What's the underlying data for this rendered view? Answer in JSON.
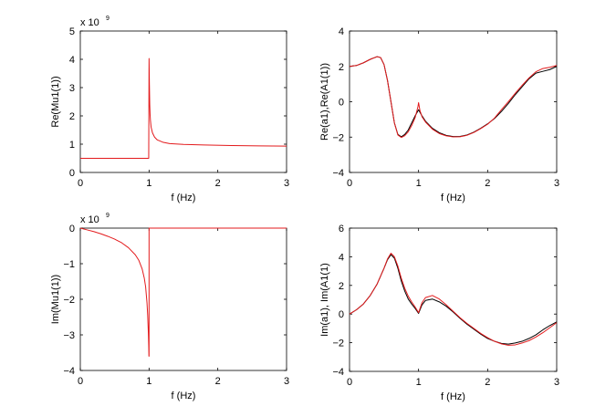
{
  "chart_data": [
    {
      "type": "line",
      "id": "p1",
      "xlabel": "f (Hz)",
      "ylabel": "Re(Mu1(1))",
      "xlim": [
        0,
        3
      ],
      "ylim": [
        0,
        5
      ],
      "xticks": [
        "0",
        "1",
        "2",
        "3"
      ],
      "yticks": [
        "0",
        "1",
        "2",
        "3",
        "4",
        "5"
      ],
      "multiplier_base": "x 10",
      "multiplier_exp": "9",
      "series": [
        {
          "name": "red",
          "color": "#e31a1c",
          "x": [
            0,
            0.99,
            0.995,
            1.0,
            1.005,
            1.01,
            1.015,
            1.02,
            1.03,
            1.05,
            1.08,
            1.12,
            1.2,
            1.3,
            1.5,
            1.8,
            2.2,
            2.6,
            3.0
          ],
          "y": [
            0.5,
            0.5,
            0.5,
            4.03,
            3.1,
            2.4,
            2.05,
            1.85,
            1.6,
            1.4,
            1.25,
            1.15,
            1.07,
            1.02,
            0.99,
            0.97,
            0.95,
            0.94,
            0.93
          ]
        }
      ]
    },
    {
      "type": "line",
      "id": "p2",
      "xlabel": "f (Hz)",
      "ylabel": "Re(a1),Re(A1(1))",
      "xlim": [
        0,
        3
      ],
      "ylim": [
        -4,
        4
      ],
      "xticks": [
        "0",
        "1",
        "2",
        "3"
      ],
      "yticks": [
        "−4",
        "−2",
        "0",
        "2",
        "4"
      ],
      "series": [
        {
          "name": "black",
          "color": "#000000",
          "x": [
            0,
            0.1,
            0.2,
            0.3,
            0.4,
            0.45,
            0.5,
            0.55,
            0.6,
            0.65,
            0.7,
            0.75,
            0.8,
            0.85,
            0.9,
            0.95,
            1.0,
            1.02,
            1.05,
            1.1,
            1.2,
            1.3,
            1.4,
            1.5,
            1.6,
            1.7,
            1.8,
            1.9,
            2.0,
            2.1,
            2.2,
            2.3,
            2.4,
            2.5,
            2.6,
            2.7,
            2.8,
            2.9,
            3.0
          ],
          "y": [
            2.0,
            2.05,
            2.2,
            2.4,
            2.55,
            2.5,
            2.1,
            1.2,
            0.0,
            -1.2,
            -1.85,
            -1.98,
            -1.85,
            -1.6,
            -1.2,
            -0.8,
            -0.45,
            -0.6,
            -0.8,
            -1.1,
            -1.5,
            -1.75,
            -1.9,
            -1.97,
            -1.96,
            -1.88,
            -1.72,
            -1.5,
            -1.25,
            -0.95,
            -0.55,
            -0.1,
            0.4,
            0.85,
            1.3,
            1.62,
            1.72,
            1.82,
            2.0
          ]
        },
        {
          "name": "red",
          "color": "#e31a1c",
          "x": [
            0,
            0.1,
            0.2,
            0.3,
            0.4,
            0.45,
            0.5,
            0.55,
            0.6,
            0.65,
            0.7,
            0.75,
            0.8,
            0.85,
            0.9,
            0.95,
            0.99,
            1.0,
            1.02,
            1.05,
            1.1,
            1.2,
            1.3,
            1.4,
            1.5,
            1.6,
            1.7,
            1.8,
            1.9,
            2.0,
            2.1,
            2.2,
            2.3,
            2.4,
            2.5,
            2.6,
            2.7,
            2.8,
            2.9,
            3.0
          ],
          "y": [
            2.0,
            2.05,
            2.2,
            2.4,
            2.55,
            2.5,
            2.1,
            1.2,
            0.0,
            -1.2,
            -1.88,
            -2.02,
            -1.92,
            -1.7,
            -1.35,
            -0.9,
            -0.3,
            -0.05,
            -0.5,
            -0.85,
            -1.15,
            -1.55,
            -1.8,
            -1.93,
            -1.99,
            -1.98,
            -1.9,
            -1.74,
            -1.52,
            -1.27,
            -0.92,
            -0.45,
            0.0,
            0.48,
            0.93,
            1.35,
            1.7,
            1.88,
            1.95,
            2.05
          ]
        }
      ]
    },
    {
      "type": "line",
      "id": "p3",
      "xlabel": "f (Hz)",
      "ylabel": "Im(Mu1(1))",
      "xlim": [
        0,
        3
      ],
      "ylim": [
        -4,
        0
      ],
      "xticks": [
        "0",
        "1",
        "2",
        "3"
      ],
      "yticks": [
        "−4",
        "−3",
        "−2",
        "−1",
        "0"
      ],
      "multiplier_base": "x 10",
      "multiplier_exp": "9",
      "series": [
        {
          "name": "red",
          "color": "#e31a1c",
          "x": [
            0,
            0.1,
            0.2,
            0.3,
            0.4,
            0.5,
            0.6,
            0.7,
            0.8,
            0.85,
            0.9,
            0.93,
            0.95,
            0.97,
            0.98,
            0.99,
            0.995,
            0.998,
            1.0,
            1.0,
            1.02,
            3.0
          ],
          "y": [
            0,
            -0.05,
            -0.1,
            -0.16,
            -0.23,
            -0.31,
            -0.41,
            -0.55,
            -0.75,
            -0.9,
            -1.15,
            -1.4,
            -1.65,
            -2.1,
            -2.45,
            -2.95,
            -3.3,
            -3.6,
            -3.6,
            0,
            0,
            0
          ]
        }
      ]
    },
    {
      "type": "line",
      "id": "p4",
      "xlabel": "f (Hz)",
      "ylabel": "Im(a1), Im(A1(1)",
      "xlim": [
        0,
        3
      ],
      "ylim": [
        -4,
        6
      ],
      "xticks": [
        "0",
        "1",
        "2",
        "3"
      ],
      "yticks": [
        "−4",
        "−2",
        "0",
        "2",
        "4",
        "6"
      ],
      "series": [
        {
          "name": "black",
          "color": "#000000",
          "x": [
            0,
            0.1,
            0.2,
            0.3,
            0.4,
            0.5,
            0.55,
            0.6,
            0.65,
            0.7,
            0.75,
            0.8,
            0.85,
            0.9,
            0.95,
            1.0,
            1.05,
            1.1,
            1.2,
            1.3,
            1.4,
            1.5,
            1.6,
            1.7,
            1.8,
            1.9,
            2.0,
            2.1,
            2.2,
            2.3,
            2.4,
            2.5,
            2.6,
            2.7,
            2.8,
            2.9,
            3.0
          ],
          "y": [
            0.0,
            0.3,
            0.7,
            1.3,
            2.1,
            3.2,
            3.8,
            4.15,
            3.9,
            3.2,
            2.3,
            1.6,
            1.05,
            0.7,
            0.4,
            0.05,
            0.65,
            0.95,
            1.05,
            0.85,
            0.55,
            0.15,
            -0.3,
            -0.7,
            -1.05,
            -1.4,
            -1.7,
            -1.9,
            -2.05,
            -2.1,
            -2.02,
            -1.9,
            -1.7,
            -1.45,
            -1.1,
            -0.8,
            -0.55
          ]
        },
        {
          "name": "red",
          "color": "#e31a1c",
          "x": [
            0,
            0.1,
            0.2,
            0.3,
            0.4,
            0.5,
            0.55,
            0.6,
            0.65,
            0.7,
            0.75,
            0.8,
            0.85,
            0.9,
            0.95,
            1.0,
            1.05,
            1.1,
            1.2,
            1.3,
            1.4,
            1.5,
            1.6,
            1.7,
            1.8,
            1.9,
            2.0,
            2.1,
            2.2,
            2.3,
            2.4,
            2.5,
            2.6,
            2.7,
            2.8,
            2.9,
            3.0
          ],
          "y": [
            0.0,
            0.3,
            0.7,
            1.3,
            2.1,
            3.2,
            3.85,
            4.25,
            4.0,
            3.35,
            2.5,
            1.8,
            1.25,
            0.85,
            0.5,
            0.1,
            0.8,
            1.15,
            1.3,
            1.05,
            0.65,
            0.2,
            -0.25,
            -0.65,
            -1.0,
            -1.35,
            -1.65,
            -1.9,
            -2.08,
            -2.18,
            -2.15,
            -2.02,
            -1.85,
            -1.6,
            -1.3,
            -0.95,
            -0.6
          ]
        }
      ]
    }
  ]
}
